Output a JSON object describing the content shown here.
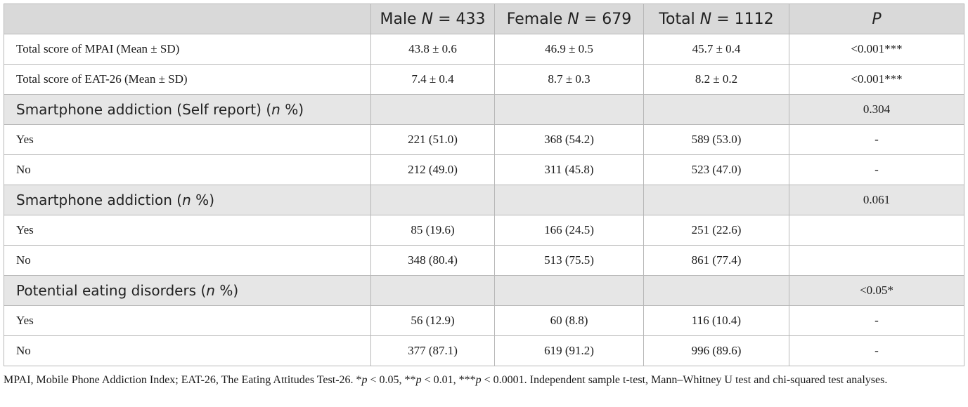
{
  "header": {
    "male": "Male",
    "female": "Female",
    "total": "Total",
    "n_symbol": "N",
    "male_n": "433",
    "female_n": "679",
    "total_n": "1112",
    "p": "P"
  },
  "rows": [
    {
      "type": "data",
      "label": "Total score of MPAI (Mean ± SD)",
      "male": "43.8 ± 0.6",
      "female": "46.9 ± 0.5",
      "total": "45.7 ± 0.4",
      "p": "<0.001***"
    },
    {
      "type": "data",
      "label": "Total score of EAT-26 (Mean ± SD)",
      "male": "7.4 ± 0.4",
      "female": "8.7 ± 0.3",
      "total": "8.2 ± 0.2",
      "p": "<0.001***"
    },
    {
      "type": "section",
      "label": "Smartphone addiction (Self report)",
      "n_symbol": "n",
      "pct": "%",
      "p": "0.304"
    },
    {
      "type": "data",
      "label": "Yes",
      "male": "221 (51.0)",
      "female": "368 (54.2)",
      "total": "589 (53.0)",
      "p": "-"
    },
    {
      "type": "data",
      "label": "No",
      "male": "212 (49.0)",
      "female": "311 (45.8)",
      "total": "523 (47.0)",
      "p": "-"
    },
    {
      "type": "section",
      "label": "Smartphone addiction",
      "n_symbol": "n",
      "pct": "%",
      "p": "0.061"
    },
    {
      "type": "data",
      "label": "Yes",
      "male": "85 (19.6)",
      "female": "166 (24.5)",
      "total": "251 (22.6)",
      "p": ""
    },
    {
      "type": "data",
      "label": "No",
      "male": "348 (80.4)",
      "female": "513 (75.5)",
      "total": "861 (77.4)",
      "p": ""
    },
    {
      "type": "section",
      "label": "Potential eating disorders",
      "n_symbol": "n",
      "pct": "%",
      "p": "<0.05*"
    },
    {
      "type": "data",
      "label": "Yes",
      "male": "56 (12.9)",
      "female": "60 (8.8)",
      "total": "116 (10.4)",
      "p": "-"
    },
    {
      "type": "data",
      "label": "No",
      "male": "377 (87.1)",
      "female": "619 (91.2)",
      "total": "996 (89.6)",
      "p": "-"
    }
  ],
  "footnote": {
    "part1": "MPAI, Mobile Phone Addiction Index; EAT-26, The Eating Attitudes Test-26. *",
    "p_symbol": "p",
    "part2": " < 0.05, **",
    "part3": " < 0.01, ***",
    "part4": " < 0.0001. Independent sample t-test, Mann–Whitney U test and chi-squared test analyses."
  }
}
